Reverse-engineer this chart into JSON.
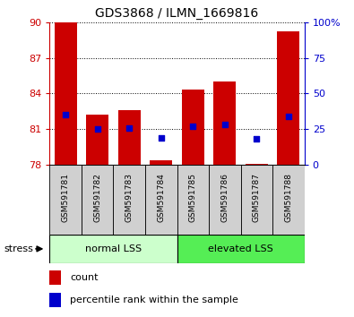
{
  "title": "GDS3868 / ILMN_1669816",
  "categories": [
    "GSM591781",
    "GSM591782",
    "GSM591783",
    "GSM591784",
    "GSM591785",
    "GSM591786",
    "GSM591787",
    "GSM591788"
  ],
  "bar_tops": [
    90.0,
    82.2,
    82.6,
    78.4,
    84.3,
    85.0,
    78.1,
    89.2
  ],
  "bar_bottom": 78.0,
  "blue_dot_pct": [
    35,
    25,
    26,
    19,
    27,
    28,
    18,
    34
  ],
  "ylim": [
    78,
    90
  ],
  "yticks_left": [
    78,
    81,
    84,
    87,
    90
  ],
  "yticks_right": [
    0,
    25,
    50,
    75,
    100
  ],
  "yticks_right_labels": [
    "0",
    "25",
    "50",
    "75",
    "100%"
  ],
  "bar_color": "#cc0000",
  "dot_color": "#0000cc",
  "group1_label": "normal LSS",
  "group2_label": "elevated LSS",
  "group1_color": "#ccffcc",
  "group2_color": "#55ee55",
  "stress_label": "stress",
  "legend_count_label": "count",
  "legend_pct_label": "percentile rank within the sample",
  "ylabel_left_color": "#cc0000",
  "ylabel_right_color": "#0000cc",
  "bar_width": 0.7,
  "ticklabel_gray": "#d0d0d0"
}
